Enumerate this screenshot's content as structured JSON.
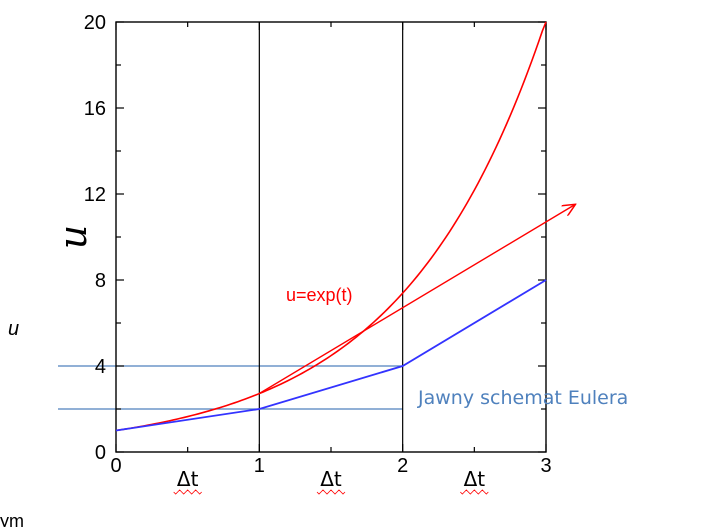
{
  "chart_data": {
    "type": "line",
    "title": "",
    "xlabel": "",
    "ylabel": "u",
    "xlim": [
      0,
      3
    ],
    "ylim": [
      0,
      20
    ],
    "x_ticks": [
      0,
      1,
      2,
      3
    ],
    "y_ticks": [
      0,
      4,
      8,
      12,
      16,
      20
    ],
    "x_tick_labels": [
      "0",
      "1",
      "2",
      "3"
    ],
    "y_tick_labels": [
      "0",
      "4",
      "8",
      "12",
      "16",
      "20"
    ],
    "interval_labels": [
      "Δt",
      "Δt",
      "Δt"
    ],
    "vertical_gridlines_at": [
      1,
      2
    ],
    "horizontal_guides_at": [
      2,
      4
    ],
    "series": [
      {
        "name": "u=exp(t)",
        "kind": "function",
        "color": "#ff0000",
        "x": [
          0,
          0.25,
          0.5,
          0.75,
          1,
          1.25,
          1.5,
          1.75,
          2,
          2.25,
          2.5,
          2.75,
          3
        ],
        "y": [
          1,
          1.28,
          1.65,
          2.12,
          2.72,
          3.49,
          4.48,
          5.75,
          7.39,
          9.49,
          12.18,
          15.64,
          20.09
        ]
      },
      {
        "name": "Jawny schemat Eulera",
        "kind": "polyline",
        "color": "#3333ff",
        "x": [
          0,
          1,
          2,
          3
        ],
        "y": [
          1,
          2,
          4,
          8
        ]
      },
      {
        "name": "",
        "kind": "tangent-arrow",
        "color": "#ff0000",
        "x": [
          1,
          3.2
        ],
        "y": [
          2.72,
          11.5
        ]
      }
    ],
    "guide_color": "#4f81bd"
  },
  "annotations": {
    "side_label": "u",
    "bottom_cut_text": "ym"
  }
}
